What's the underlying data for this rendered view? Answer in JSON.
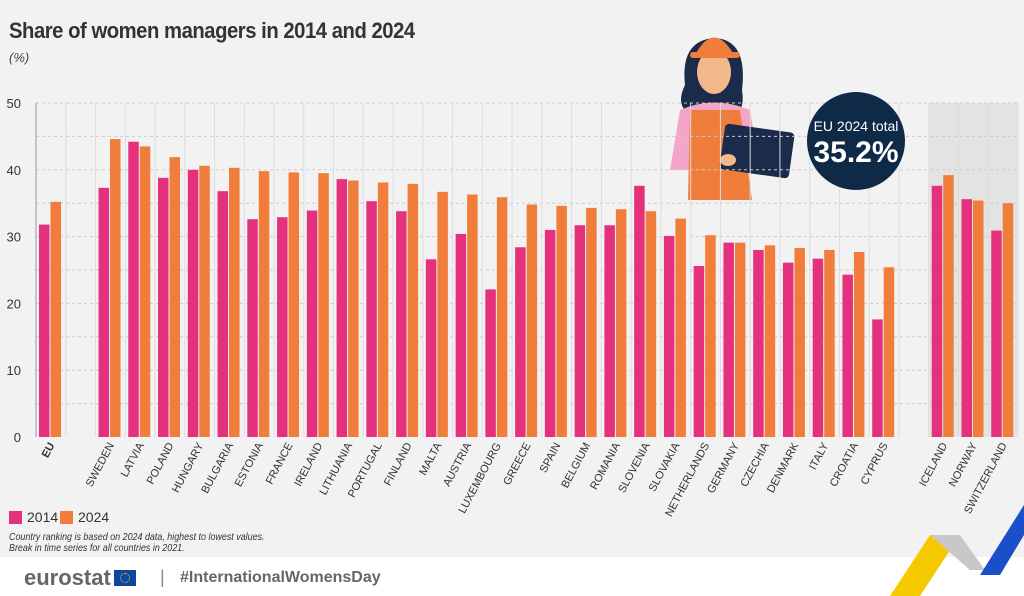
{
  "title": "Share of women managers in 2014 and 2024",
  "unit": "(%)",
  "legend": [
    {
      "label": "2014",
      "color": "#e5307e"
    },
    {
      "label": "2024",
      "color": "#f07d3c"
    }
  ],
  "notes": [
    "Country ranking is based on 2024 data, highest to lowest values.",
    "Break in time series for all countries in 2021."
  ],
  "badge": {
    "label": "EU 2024 total",
    "value": "35.2%"
  },
  "footer": {
    "logo": "eurostat",
    "hashtag": "#InternationalWomensDay"
  },
  "chart_data": {
    "type": "bar",
    "title": "Share of women managers in 2014 and 2024",
    "ylabel": "(%)",
    "ylim": [
      0,
      50
    ],
    "yticks": [
      0,
      10,
      20,
      30,
      40,
      50
    ],
    "grid": true,
    "legend_position": "bottom-left",
    "categories": [
      "EU",
      "SWEDEN",
      "LATVIA",
      "POLAND",
      "HUNGARY",
      "BULGARIA",
      "ESTONIA",
      "FRANCE",
      "IRELAND",
      "LITHUANIA",
      "PORTUGAL",
      "FINLAND",
      "MALTA",
      "AUSTRIA",
      "LUXEMBOURG",
      "GREECE",
      "SPAIN",
      "BELGIUM",
      "ROMANIA",
      "SLOVENIA",
      "SLOVAKIA",
      "NETHERLANDS",
      "GERMANY",
      "CZECHIA",
      "DENMARK",
      "ITALY",
      "CROATIA",
      "CYPRUS",
      "ICELAND",
      "NORWAY",
      "SWITZERLAND"
    ],
    "series": [
      {
        "name": "2014",
        "values": [
          31.8,
          37.3,
          44.2,
          38.8,
          40.0,
          36.8,
          32.6,
          32.9,
          33.9,
          38.6,
          35.3,
          33.8,
          26.6,
          30.4,
          22.1,
          28.4,
          31.0,
          31.7,
          31.7,
          37.6,
          30.1,
          25.6,
          29.1,
          28.0,
          26.1,
          26.7,
          24.3,
          17.6,
          37.6,
          35.6,
          30.9
        ]
      },
      {
        "name": "2024",
        "values": [
          35.2,
          44.6,
          43.5,
          41.9,
          40.6,
          40.3,
          39.8,
          39.6,
          39.5,
          38.4,
          38.1,
          37.9,
          36.7,
          36.3,
          35.9,
          34.8,
          34.6,
          34.3,
          34.1,
          33.8,
          32.7,
          30.2,
          29.1,
          28.7,
          28.3,
          28.0,
          27.7,
          25.4,
          39.2,
          35.4,
          35.0
        ]
      }
    ]
  }
}
